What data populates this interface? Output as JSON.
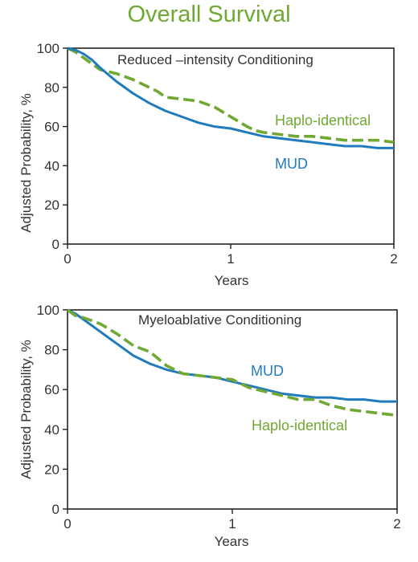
{
  "title": "Overall Survival",
  "colors": {
    "mud": "#1f7bbd",
    "haplo": "#6fa832",
    "title": "#6fa832",
    "text": "#333333"
  },
  "chart_data": [
    {
      "type": "line",
      "subtitle": "Reduced –intensity Conditioning",
      "xlabel": "Years",
      "ylabel": "Adjusted Probability, %",
      "xlim": [
        0,
        2
      ],
      "ylim": [
        0,
        100
      ],
      "xticks": [
        "0",
        "1",
        "2"
      ],
      "yticks": [
        "0",
        "20",
        "40",
        "60",
        "80",
        "100"
      ],
      "grid": false,
      "series": [
        {
          "name": "Haplo-identical",
          "style": "dashed",
          "color": "#6fa832",
          "x": [
            0,
            0.05,
            0.1,
            0.15,
            0.2,
            0.3,
            0.4,
            0.5,
            0.55,
            0.6,
            0.7,
            0.8,
            0.9,
            1.0,
            1.1,
            1.15,
            1.2,
            1.3,
            1.4,
            1.5,
            1.6,
            1.7,
            1.8,
            1.9,
            2.0
          ],
          "y": [
            100,
            98,
            95,
            92,
            89,
            87,
            84,
            80,
            78,
            75,
            74,
            73,
            70,
            65,
            60,
            58,
            57,
            56,
            55,
            55,
            54,
            53,
            53,
            53,
            52
          ]
        },
        {
          "name": "MUD",
          "style": "solid",
          "color": "#1f7bbd",
          "x": [
            0,
            0.05,
            0.1,
            0.15,
            0.2,
            0.3,
            0.4,
            0.5,
            0.6,
            0.7,
            0.8,
            0.9,
            1.0,
            1.1,
            1.2,
            1.3,
            1.4,
            1.5,
            1.6,
            1.7,
            1.8,
            1.9,
            2.0
          ],
          "y": [
            100,
            99,
            97,
            94,
            90,
            83,
            77,
            72,
            68,
            65,
            62,
            60,
            59,
            57,
            55,
            54,
            53,
            52,
            51,
            50,
            50,
            49,
            49
          ]
        }
      ],
      "annotations": [
        "Haplo-identical",
        "MUD"
      ]
    },
    {
      "type": "line",
      "subtitle": "Myeloablative Conditioning",
      "xlabel": "Years",
      "ylabel": "Adjusted Probability, %",
      "xlim": [
        0,
        2
      ],
      "ylim": [
        0,
        100
      ],
      "xticks": [
        "0",
        "1",
        "2"
      ],
      "yticks": [
        "0",
        "20",
        "40",
        "60",
        "80",
        "100"
      ],
      "grid": false,
      "series": [
        {
          "name": "MUD",
          "style": "solid",
          "color": "#1f7bbd",
          "x": [
            0,
            0.05,
            0.1,
            0.2,
            0.3,
            0.4,
            0.5,
            0.6,
            0.7,
            0.8,
            0.9,
            1.0,
            1.1,
            1.2,
            1.3,
            1.4,
            1.5,
            1.6,
            1.7,
            1.8,
            1.9,
            2.0
          ],
          "y": [
            100,
            98,
            95,
            89,
            83,
            77,
            73,
            70,
            68,
            67,
            66,
            64,
            62,
            60,
            58,
            57,
            56,
            56,
            55,
            55,
            54,
            54
          ]
        },
        {
          "name": "Haplo-identical",
          "style": "dashed",
          "color": "#6fa832",
          "x": [
            0,
            0.05,
            0.1,
            0.2,
            0.3,
            0.4,
            0.5,
            0.6,
            0.7,
            0.8,
            0.9,
            1.0,
            1.1,
            1.2,
            1.3,
            1.4,
            1.5,
            1.6,
            1.7,
            1.8,
            1.9,
            2.0
          ],
          "y": [
            100,
            97,
            96,
            93,
            88,
            82,
            79,
            72,
            68,
            67,
            66,
            65,
            61,
            59,
            57,
            55,
            55,
            52,
            50,
            49,
            48,
            47
          ]
        }
      ],
      "annotations": [
        "MUD",
        "Haplo-identical"
      ]
    }
  ]
}
